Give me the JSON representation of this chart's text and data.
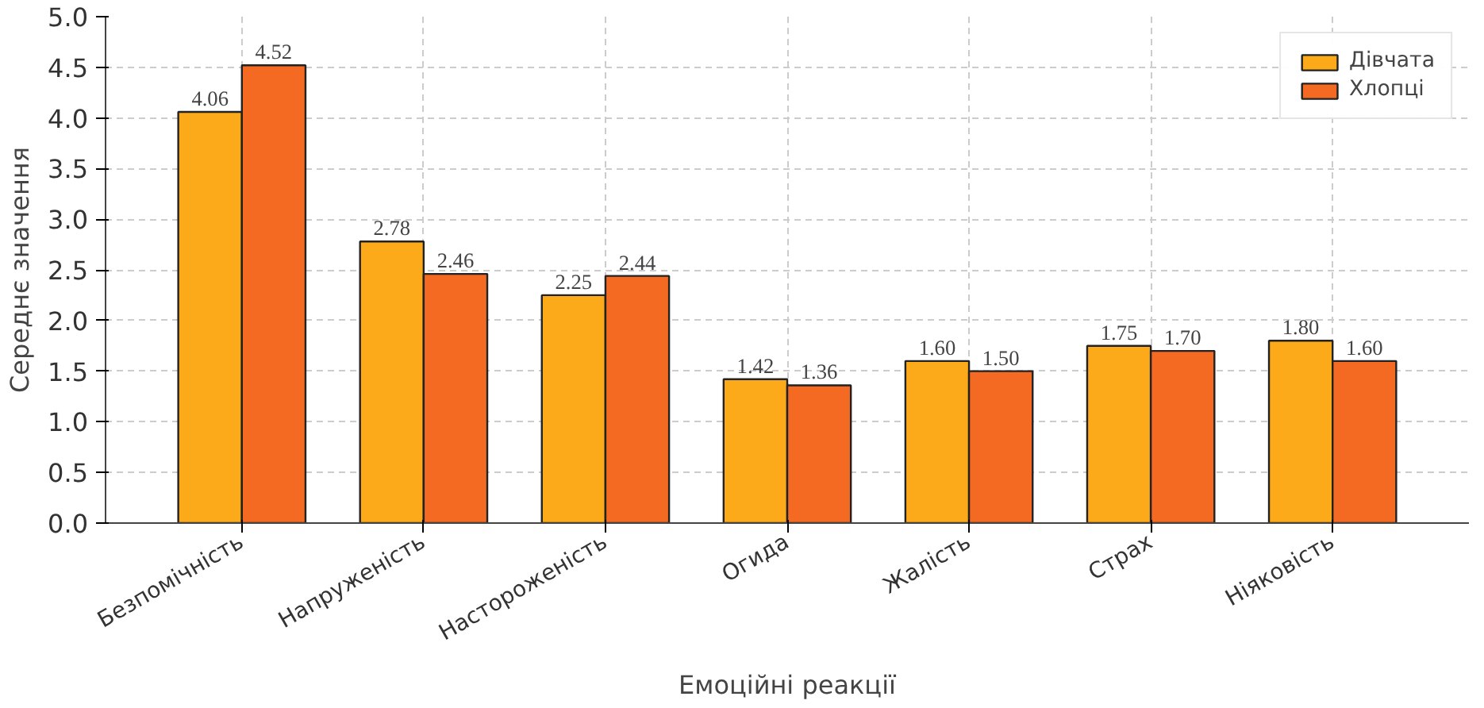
{
  "chart_data": {
    "type": "bar",
    "xlabel": "Емоційні реакції",
    "ylabel": "Середнє значення",
    "categories": [
      "Безпомічність",
      "Напруженість",
      "Настороженість",
      "Огида",
      "Жалість",
      "Страх",
      "Ніяковість"
    ],
    "series": [
      {
        "name": "Дівчата",
        "color": "#fdaa1a",
        "values": [
          4.06,
          2.78,
          2.25,
          1.42,
          1.6,
          1.75,
          1.8
        ],
        "value_labels": [
          "4.06",
          "2.78",
          "2.25",
          "1.42",
          "1.60",
          "1.75",
          "1.80"
        ]
      },
      {
        "name": "Хлопці",
        "color": "#f46a22",
        "values": [
          4.52,
          2.46,
          2.44,
          1.36,
          1.5,
          1.7,
          1.6
        ],
        "value_labels": [
          "4.52",
          "2.46",
          "2.44",
          "1.36",
          "1.50",
          "1.70",
          "1.60"
        ]
      }
    ],
    "ylim": [
      0,
      5
    ],
    "yticks": [
      "0.0",
      "0.5",
      "1.0",
      "1.5",
      "2.0",
      "2.5",
      "3.0",
      "3.5",
      "4.0",
      "4.5",
      "5.0"
    ],
    "grid": true,
    "legend": "top right"
  }
}
